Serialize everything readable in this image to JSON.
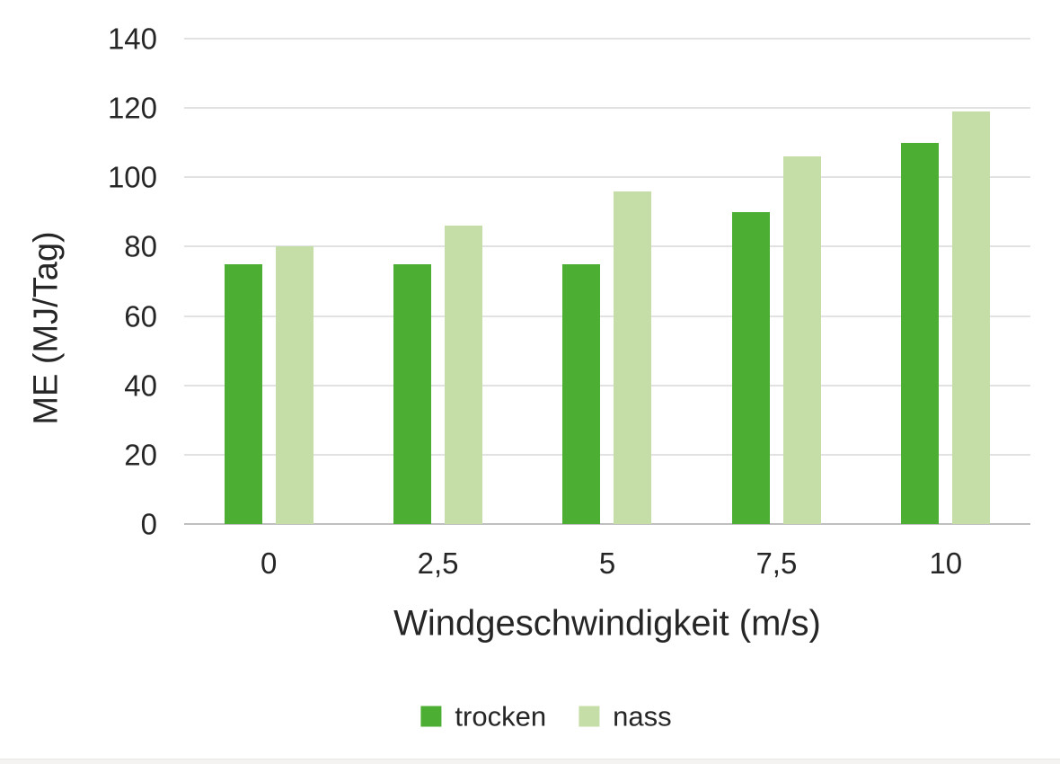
{
  "chart_data": {
    "type": "bar",
    "title": "",
    "xlabel": "Windgeschwindigkeit (m/s)",
    "ylabel": "ME (MJ/Tag)",
    "categories": [
      "0",
      "2,5",
      "5",
      "7,5",
      "10"
    ],
    "series": [
      {
        "name": "trocken",
        "color": "#4cae32",
        "values": [
          75,
          75,
          75,
          90,
          110
        ]
      },
      {
        "name": "nass",
        "color": "#c5dda6",
        "values": [
          80,
          86,
          96,
          106,
          119
        ]
      }
    ],
    "ylim": [
      0,
      140
    ],
    "ytick_step": 20,
    "yticks": [
      0,
      20,
      40,
      60,
      80,
      100,
      120,
      140
    ],
    "grid": "horizontal",
    "gridline_color": "#e2e2e2",
    "baseline_color": "#bfbfbf",
    "legend_position": "bottom",
    "text_color": "#262626"
  }
}
